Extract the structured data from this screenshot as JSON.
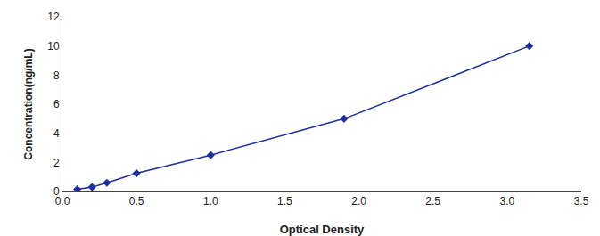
{
  "chart_data": {
    "type": "line",
    "x": [
      0.1,
      0.2,
      0.3,
      0.5,
      1.0,
      1.9,
      3.15
    ],
    "values": [
      0.15,
      0.3,
      0.6,
      1.25,
      2.5,
      5.0,
      10.0
    ],
    "color": "#1c2fa0",
    "marker": "diamond",
    "xlabel": "Optical Density",
    "ylabel": "Concentration(ng/mL)",
    "xlim": [
      0,
      3.5
    ],
    "ylim": [
      0,
      12
    ],
    "xticks": [
      {
        "value": 0,
        "label": "0.0"
      },
      0.5,
      {
        "value": 1.0,
        "label": "1.0"
      },
      1.5,
      {
        "value": 2.0,
        "label": "2.0"
      },
      2.5,
      {
        "value": 3.0,
        "label": "3.0"
      },
      3.5
    ],
    "yticks": [
      0,
      2,
      4,
      6,
      8,
      10,
      12
    ],
    "grid": false
  }
}
